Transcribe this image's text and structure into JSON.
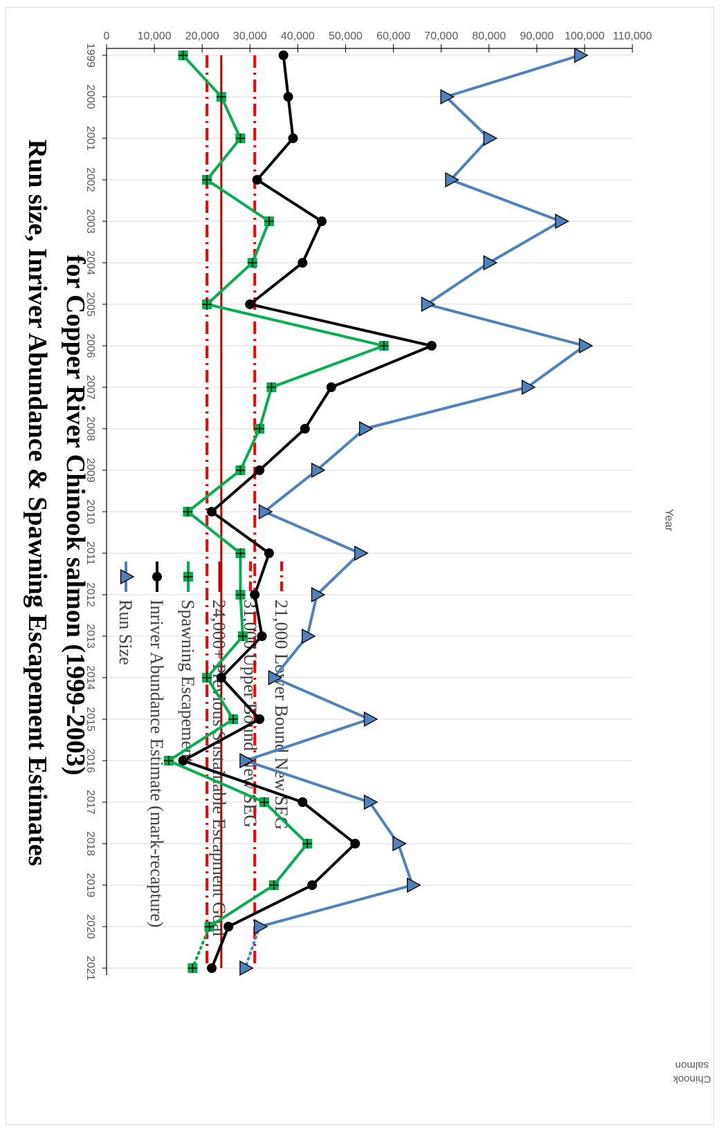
{
  "chart_data": {
    "type": "line",
    "title": "Run size, Inriver Abundance & Spawning Escapement Estimates",
    "subtitle": "for Copper River Chinook salmon (1999-2003)",
    "xlabel": "Year",
    "ylabel": "Chinook salmon",
    "ylim": [
      0,
      110000
    ],
    "y_ticks": [
      "0",
      "10,000",
      "20,000",
      "30,000",
      "40,000",
      "50,000",
      "60,000",
      "70,000",
      "80,000",
      "90,000",
      "100,000",
      "110,000"
    ],
    "categories": [
      "1999",
      "2000",
      "2001",
      "2002",
      "2003",
      "2004",
      "2005",
      "2006",
      "2007",
      "2008",
      "2009",
      "2010",
      "2011",
      "2012",
      "2013",
      "2014",
      "2015",
      "2016",
      "2017",
      "2018",
      "2019",
      "2020",
      "2021"
    ],
    "series": [
      {
        "name": "Run Size",
        "color": "#4f81bd",
        "marker": "triangle",
        "values": [
          99000,
          71000,
          80000,
          72000,
          95000,
          80000,
          67000,
          100000,
          88000,
          54000,
          44000,
          33000,
          53000,
          44000,
          42000,
          35000,
          55000,
          29000,
          55000,
          61000,
          64000,
          32000,
          29000
        ]
      },
      {
        "name": "Inriver Abundance Estimate (mark-recapture)",
        "color": "#000000",
        "marker": "circle",
        "values": [
          37000,
          38000,
          39000,
          31500,
          45000,
          41000,
          30000,
          68000,
          47000,
          41500,
          32000,
          22000,
          34000,
          31000,
          32500,
          24000,
          32000,
          16000,
          41000,
          52000,
          43000,
          25500,
          22000
        ]
      },
      {
        "name": "Spawning Escapement",
        "color": "#00b050",
        "marker": "square-cross",
        "values": [
          16000,
          24000,
          28000,
          21000,
          34000,
          30500,
          21000,
          58000,
          34500,
          32000,
          28000,
          17000,
          28000,
          28000,
          28500,
          21000,
          26500,
          13000,
          33000,
          42000,
          35000,
          21500,
          18000
        ]
      }
    ],
    "dotted_extension_years": [
      "2020",
      "2021"
    ],
    "reference_lines": [
      {
        "label": "24,000+ Previous Sustainable Escapment Goal",
        "value": 24000,
        "color": "#c00000",
        "style": "solid"
      },
      {
        "label": "31,000 Upper Bound New SEG",
        "value": 31000,
        "color": "#ff0000",
        "style": "dash-dot"
      },
      {
        "label": "21,000 Lower Bound New SEG",
        "value": 21000,
        "color": "#ff0000",
        "style": "dash-dot"
      }
    ],
    "grid": true,
    "legend_position": "upper area, beside the title",
    "orientation": "page rotated 90 degrees (landscape chart printed sideways)"
  }
}
